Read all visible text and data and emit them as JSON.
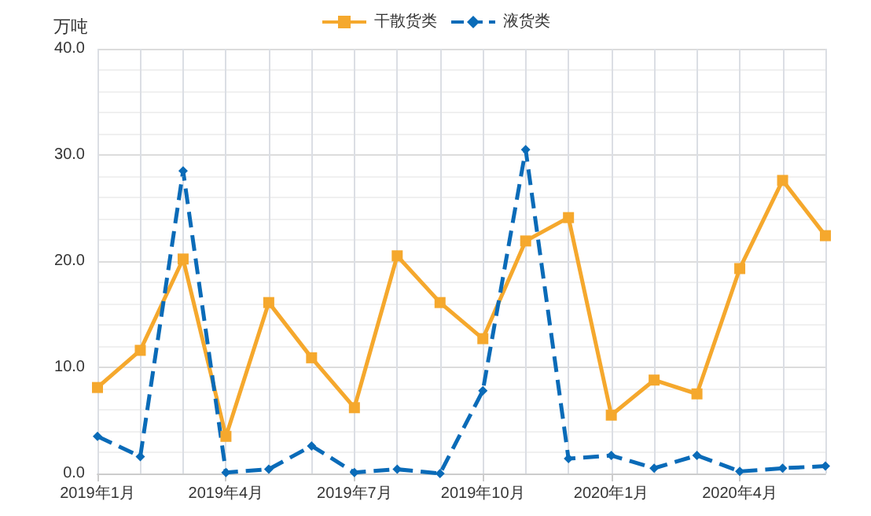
{
  "chart_data": {
    "type": "line",
    "ylabel": "万吨",
    "legend": "top",
    "grid": true,
    "categories": [
      "2019年1月",
      null,
      null,
      "2019年4月",
      null,
      null,
      "2019年7月",
      null,
      null,
      "2019年10月",
      null,
      null,
      "2020年1月",
      null,
      null,
      "2020年4月",
      null,
      null
    ],
    "series": [
      {
        "name": "干散货类",
        "color": "#f5a82d",
        "marker": "square",
        "line_style": "solid",
        "values": [
          8.1,
          11.6,
          20.2,
          3.5,
          16.1,
          10.9,
          6.2,
          20.5,
          16.1,
          12.7,
          21.9,
          24.1,
          5.5,
          8.8,
          7.5,
          19.3,
          27.6,
          22.4
        ]
      },
      {
        "name": "液货类",
        "color": "#0a6bb8",
        "marker": "diamond",
        "line_style": "dashed",
        "values": [
          3.5,
          1.6,
          28.5,
          0.1,
          0.4,
          2.6,
          0.1,
          0.4,
          0.0,
          7.8,
          30.5,
          1.4,
          1.7,
          0.5,
          1.7,
          0.2,
          0.5,
          0.7
        ]
      }
    ],
    "ylim": [
      0,
      40
    ],
    "yticks": [
      {
        "value": 0,
        "label": "0.0"
      },
      {
        "value": 10,
        "label": "10.0"
      },
      {
        "value": 20,
        "label": "20.0"
      },
      {
        "value": 30,
        "label": "30.0"
      },
      {
        "value": 40,
        "label": "40.0"
      }
    ]
  }
}
